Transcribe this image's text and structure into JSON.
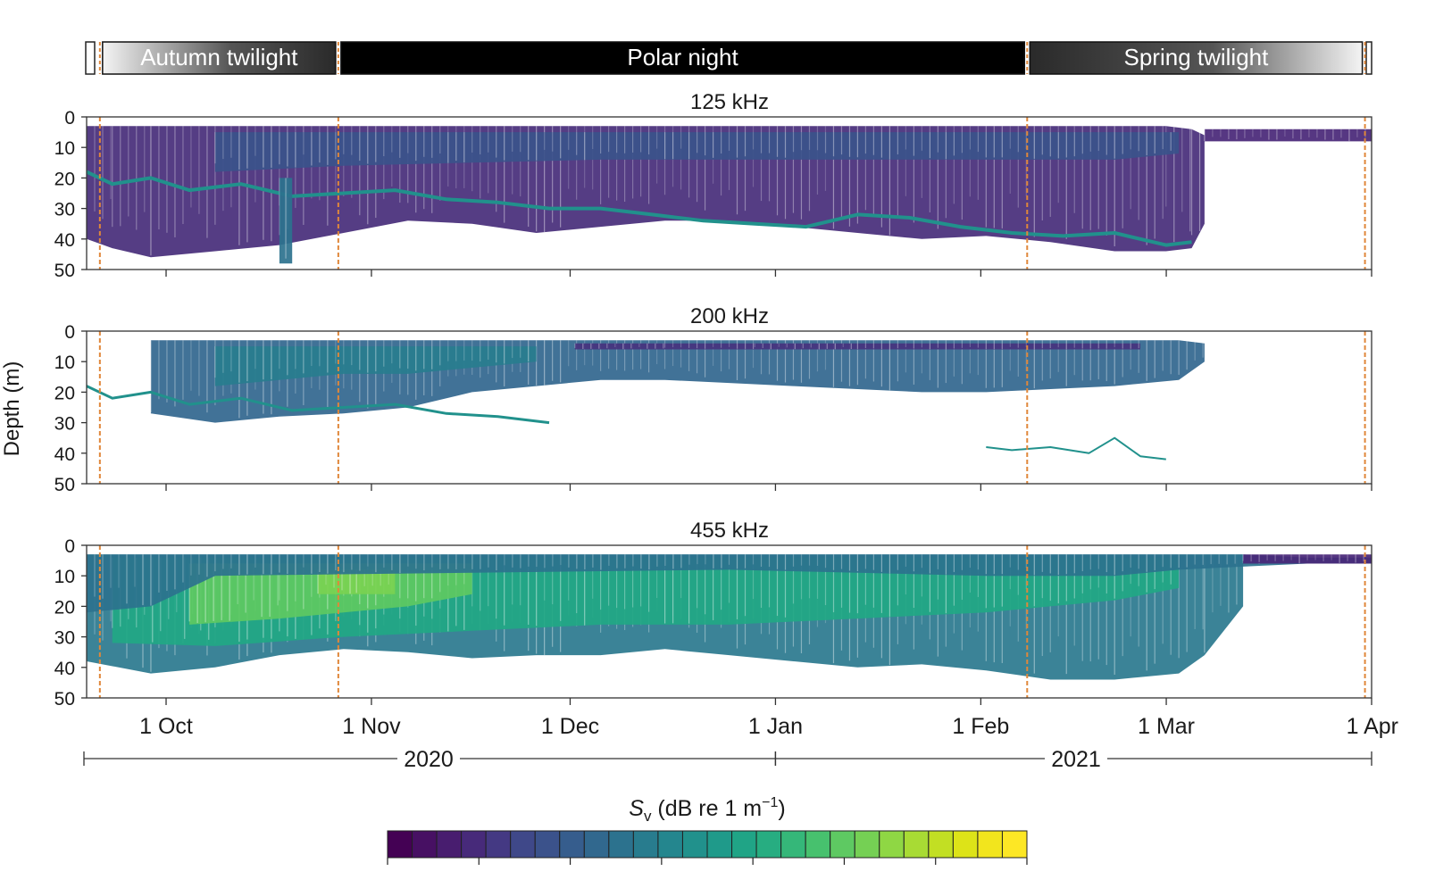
{
  "chart_data": {
    "type": "heatmap",
    "ylabel": "Depth (m)",
    "y_ticks": [
      0,
      10,
      20,
      30,
      40,
      50
    ],
    "ylim": [
      0,
      50
    ],
    "y_inverted": true,
    "x_range": [
      "2020-09-19",
      "2021-04-01"
    ],
    "x_ticks": [
      {
        "date": "2020-10-01",
        "label": "1 Oct"
      },
      {
        "date": "2020-11-01",
        "label": "1 Nov"
      },
      {
        "date": "2020-12-01",
        "label": "1 Dec"
      },
      {
        "date": "2021-01-01",
        "label": "1 Jan"
      },
      {
        "date": "2021-02-01",
        "label": "1 Feb"
      },
      {
        "date": "2021-03-01",
        "label": "1 Mar"
      },
      {
        "date": "2021-04-01",
        "label": "1 Apr"
      }
    ],
    "years": [
      {
        "label": "2020",
        "start": "2020-09-19",
        "end": "2021-01-01"
      },
      {
        "label": "2021",
        "start": "2021-01-01",
        "end": "2021-04-01"
      }
    ],
    "seasons": [
      {
        "label": "Autumn twilight",
        "start": "2020-09-21",
        "end": "2020-10-27",
        "gradient": "light-to-dark"
      },
      {
        "label": "Polar night",
        "start": "2020-10-27",
        "end": "2021-02-08",
        "gradient": "black"
      },
      {
        "label": "Spring twilight",
        "start": "2021-02-08",
        "end": "2021-03-31",
        "gradient": "dark-to-light"
      }
    ],
    "boundary_dates": [
      "2020-09-21",
      "2020-10-27",
      "2021-02-08",
      "2021-03-31"
    ],
    "boundary_color": "#e0873a",
    "panels": [
      {
        "title": "125 kHz",
        "layers": [
          {
            "kind": "band",
            "x": [
              0,
              0.02,
              0.05,
              0.1,
              0.15,
              0.2,
              0.25,
              0.3,
              0.35,
              0.4,
              0.45,
              0.5,
              0.55,
              0.6,
              0.65,
              0.7,
              0.75,
              0.8,
              0.84,
              0.86,
              0.87
            ],
            "top": [
              3,
              3,
              3,
              3,
              3,
              3,
              3,
              3,
              3,
              3,
              3,
              3,
              3,
              3,
              3,
              3,
              3,
              3,
              3,
              4,
              6
            ],
            "bottom": [
              40,
              43,
              46,
              44,
              42,
              38,
              34,
              35,
              38,
              36,
              34,
              34,
              36,
              38,
              40,
              39,
              41,
              44,
              44,
              43,
              35
            ],
            "color": "#472c7a"
          },
          {
            "kind": "band",
            "x": [
              0.1,
              0.2,
              0.3,
              0.4,
              0.5,
              0.6,
              0.7,
              0.8,
              0.85
            ],
            "top": [
              5,
              5,
              5,
              5,
              5,
              5,
              5,
              5,
              5
            ],
            "bottom": [
              18,
              16,
              15,
              14,
              14,
              14,
              14,
              14,
              12
            ],
            "color": "#3b528b"
          },
          {
            "kind": "line",
            "x": [
              0,
              0.02,
              0.05,
              0.08,
              0.12,
              0.16,
              0.2,
              0.24,
              0.28,
              0.32,
              0.36,
              0.4,
              0.44,
              0.48,
              0.52,
              0.56,
              0.6,
              0.64,
              0.68,
              0.72,
              0.76,
              0.8,
              0.84,
              0.86
            ],
            "y": [
              18,
              22,
              20,
              24,
              22,
              26,
              25,
              24,
              27,
              28,
              30,
              30,
              32,
              34,
              35,
              36,
              32,
              33,
              36,
              38,
              39,
              38,
              42,
              41
            ],
            "color": "#21918c",
            "width": 4
          },
          {
            "kind": "band",
            "x": [
              0.15,
              0.155,
              0.16
            ],
            "top": [
              20,
              20,
              20
            ],
            "bottom": [
              48,
              48,
              48
            ],
            "color": "#2c728e"
          },
          {
            "kind": "band",
            "x": [
              0.87,
              1
            ],
            "top": [
              4,
              4
            ],
            "bottom": [
              8,
              8
            ],
            "color": "#482677"
          }
        ]
      },
      {
        "title": "200 kHz",
        "layers": [
          {
            "kind": "band",
            "x": [
              0.05,
              0.1,
              0.15,
              0.2,
              0.25,
              0.3,
              0.35,
              0.4,
              0.45,
              0.5,
              0.55,
              0.6,
              0.65,
              0.7,
              0.75,
              0.8,
              0.85,
              0.87
            ],
            "top": [
              3,
              3,
              3,
              3,
              3,
              3,
              3,
              3,
              3,
              3,
              3,
              3,
              3,
              3,
              3,
              3,
              3,
              4
            ],
            "bottom": [
              27,
              30,
              28,
              27,
              25,
              20,
              18,
              16,
              16,
              17,
              18,
              19,
              20,
              20,
              19,
              18,
              16,
              10
            ],
            "color": "#31668e"
          },
          {
            "kind": "band",
            "x": [
              0.1,
              0.15,
              0.2,
              0.25,
              0.3,
              0.35
            ],
            "top": [
              5,
              5,
              5,
              5,
              5,
              5
            ],
            "bottom": [
              18,
              16,
              14,
              14,
              12,
              10
            ],
            "color": "#287d8e"
          },
          {
            "kind": "line",
            "x": [
              0,
              0.02,
              0.05,
              0.08,
              0.12,
              0.16,
              0.2,
              0.24,
              0.28,
              0.32,
              0.36
            ],
            "y": [
              18,
              22,
              20,
              24,
              22,
              26,
              25,
              24,
              27,
              28,
              30
            ],
            "color": "#21918c",
            "width": 3
          },
          {
            "kind": "line",
            "x": [
              0.7,
              0.72,
              0.75,
              0.78,
              0.8,
              0.82,
              0.84
            ],
            "y": [
              38,
              39,
              38,
              40,
              35,
              41,
              42
            ],
            "color": "#21918c",
            "width": 2
          },
          {
            "kind": "band",
            "x": [
              0.38,
              0.45,
              0.52,
              0.6,
              0.7,
              0.75,
              0.82
            ],
            "top": [
              4,
              4,
              4,
              4,
              4,
              4,
              4
            ],
            "bottom": [
              6,
              6,
              6,
              6,
              6,
              6,
              6
            ],
            "color": "#46337e"
          }
        ]
      },
      {
        "title": "455 kHz",
        "layers": [
          {
            "kind": "band",
            "x": [
              0,
              0.05,
              0.1,
              0.15,
              0.2,
              0.25,
              0.3,
              0.35,
              0.4,
              0.45,
              0.5,
              0.55,
              0.6,
              0.65,
              0.7,
              0.75,
              0.8,
              0.85,
              0.87,
              0.9
            ],
            "top": [
              3,
              3,
              3,
              3,
              3,
              3,
              3,
              3,
              3,
              3,
              3,
              3,
              3,
              3,
              3,
              3,
              3,
              3,
              3,
              3
            ],
            "bottom": [
              38,
              42,
              40,
              36,
              34,
              35,
              37,
              36,
              36,
              34,
              36,
              38,
              40,
              39,
              41,
              44,
              44,
              42,
              36,
              20
            ],
            "color": "#2a788e"
          },
          {
            "kind": "band",
            "x": [
              0.02,
              0.1,
              0.2,
              0.3,
              0.4,
              0.5,
              0.6,
              0.7,
              0.8,
              0.85
            ],
            "top": [
              4,
              4,
              4,
              4,
              4,
              4,
              4,
              4,
              4,
              4
            ],
            "bottom": [
              32,
              33,
              30,
              28,
              26,
              26,
              24,
              22,
              18,
              14
            ],
            "color": "#22a884"
          },
          {
            "kind": "band",
            "x": [
              0.08,
              0.15,
              0.2,
              0.25,
              0.3
            ],
            "top": [
              6,
              6,
              6,
              6,
              6
            ],
            "bottom": [
              26,
              24,
              22,
              20,
              16
            ],
            "color": "#5ec962"
          },
          {
            "kind": "band",
            "x": [
              0.18,
              0.21,
              0.24
            ],
            "top": [
              8,
              8,
              8
            ],
            "bottom": [
              16,
              16,
              16
            ],
            "color": "#7ad151"
          },
          {
            "kind": "band",
            "x": [
              0,
              0.05,
              0.1,
              0.5,
              0.6,
              0.7,
              0.8,
              0.85,
              0.9,
              0.95,
              1
            ],
            "top": [
              3,
              3,
              3,
              3,
              3,
              3,
              3,
              3,
              3,
              4,
              4
            ],
            "bottom": [
              22,
              20,
              10,
              8,
              9,
              10,
              10,
              8,
              7,
              6,
              6
            ],
            "color": "#2c728e"
          },
          {
            "kind": "band",
            "x": [
              0.9,
              1
            ],
            "top": [
              3,
              3
            ],
            "bottom": [
              6,
              6
            ],
            "color": "#482677"
          }
        ]
      }
    ],
    "colorbar": {
      "label": "S",
      "label_subscript": "v",
      "label_rest": " (dB re 1 m",
      "label_sup": "−1",
      "label_close": ")",
      "colors": [
        "#440154",
        "#471063",
        "#481d6f",
        "#472a7a",
        "#443983",
        "#3f4889",
        "#3b528b",
        "#365d8d",
        "#31688e",
        "#2c728e",
        "#287c8e",
        "#24868e",
        "#21918c",
        "#1f9a8a",
        "#20a486",
        "#27ad81",
        "#35b779",
        "#47c16e",
        "#5ec962",
        "#75d054",
        "#8fd744",
        "#a8db34",
        "#c2df23",
        "#dde318",
        "#f2e51d",
        "#fde725"
      ]
    }
  }
}
